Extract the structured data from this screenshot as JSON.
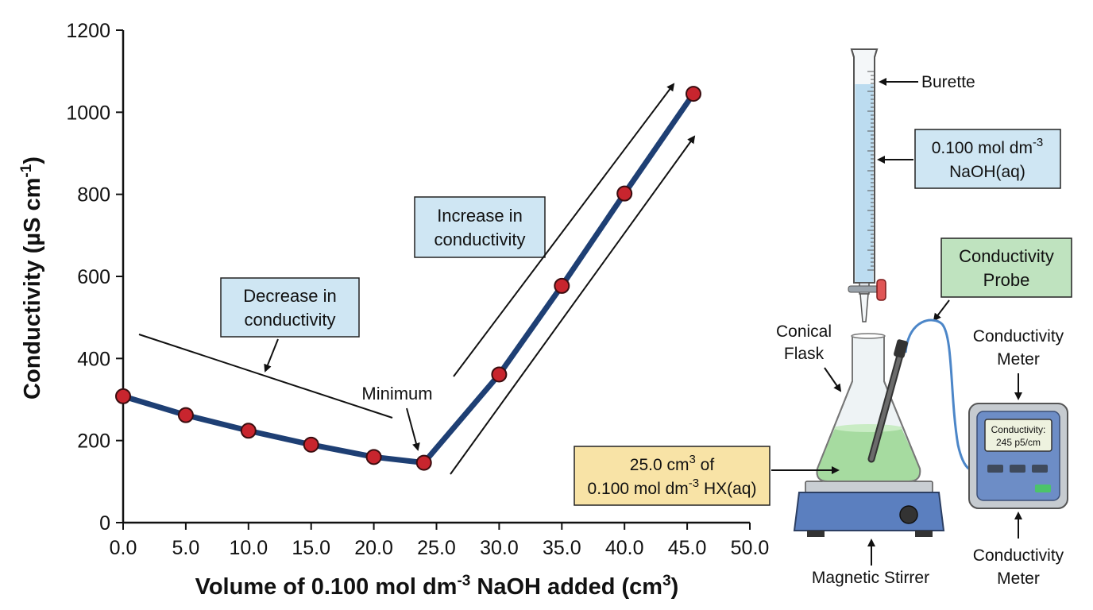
{
  "chart_data": {
    "type": "line",
    "xlabel": "Volume of 0.100 mol dm",
    "xlabel_sup1": "-3",
    "xlabel_mid": " NaOH added (cm",
    "xlabel_sup2": "3",
    "xlabel_end": ")",
    "ylabel": "Conductivity (µS cm",
    "ylabel_sup": "-1",
    "ylabel_end": ")",
    "xlim": [
      0,
      50
    ],
    "ylim": [
      0,
      1200
    ],
    "x_ticks": [
      "0.0",
      "5.0",
      "10.0",
      "15.0",
      "20.0",
      "25.0",
      "30.0",
      "35.0",
      "40.0",
      "45.0",
      "50.0"
    ],
    "y_ticks": [
      "0",
      "200",
      "400",
      "600",
      "800",
      "1000",
      "1200"
    ],
    "series": [
      {
        "x": [
          0,
          5,
          10,
          15,
          20,
          24,
          30,
          35,
          40,
          45.5
        ],
        "y": [
          308,
          262,
          224,
          190,
          160,
          146,
          361,
          577,
          802,
          1045
        ]
      }
    ],
    "grid": false,
    "line_color": "#1e3f74",
    "marker_color": "#c8252e",
    "annotations": {
      "decrease": [
        "Decrease in",
        "conductivity"
      ],
      "increase": [
        "Increase in",
        "conductivity"
      ],
      "minimum": "Minimum"
    }
  },
  "apparatus": {
    "burette": "Burette",
    "naoh_line1": "0.100 mol dm",
    "naoh_sup": "-3",
    "naoh_line2": "NaOH(aq)",
    "probe": [
      "Conductivity",
      "Probe"
    ],
    "flask": [
      "Conical",
      "Flask"
    ],
    "meter_top": [
      "Conductivity",
      "Meter"
    ],
    "meter_bottom": [
      "Conductivity",
      "Meter"
    ],
    "hx_line1": "25.0 cm",
    "hx_sup1": "3",
    "hx_line1_end": " of",
    "hx_line2": "0.100 mol dm",
    "hx_sup2": "-3",
    "hx_line2_end": " HX(aq)",
    "stirrer": "Magnetic Stirrer",
    "meter_screen": [
      "Conductivity:",
      "245 p5/cm"
    ],
    "colors": {
      "blue_box": "#cfe6f3",
      "green_box": "#bfe3bf",
      "yellow_box": "#f8e3a6",
      "solution_green": "#a6dba0",
      "stirrer_blue": "#5b7fbf",
      "meter_blue": "#6d8dc6"
    }
  }
}
